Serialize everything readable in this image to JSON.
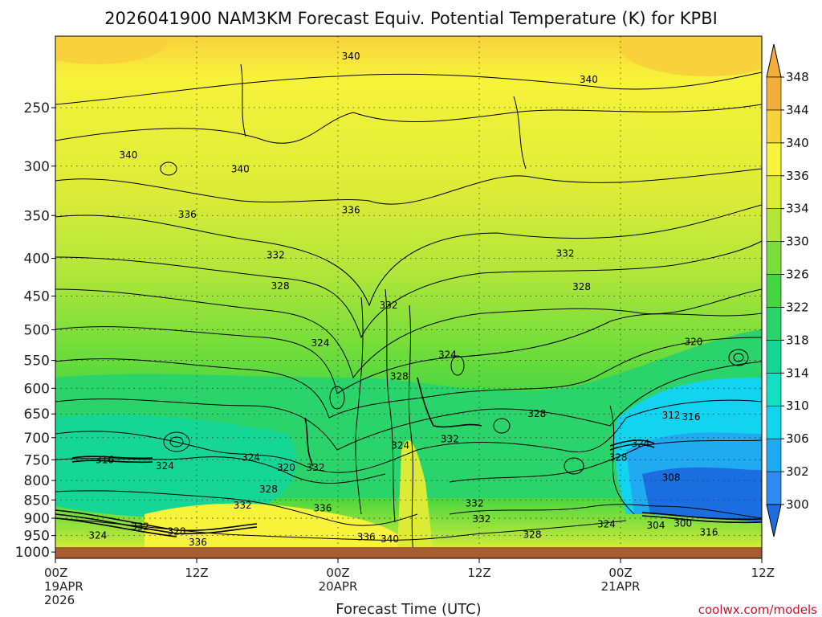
{
  "chart_data": {
    "type": "heatmap",
    "title": "2026041900 NAM3KM Forecast Equiv. Potential Temperature (K) for KPBI",
    "xlabel": "Forecast Time (UTC)",
    "ylabel": "",
    "x_ticks": [
      {
        "hours": 0,
        "line1": "00Z",
        "line2": "19APR",
        "line3": "2026"
      },
      {
        "hours": 12,
        "line1": "12Z",
        "line2": "",
        "line3": ""
      },
      {
        "hours": 24,
        "line1": "00Z",
        "line2": "20APR",
        "line3": ""
      },
      {
        "hours": 36,
        "line1": "12Z",
        "line2": "",
        "line3": ""
      },
      {
        "hours": 48,
        "line1": "00Z",
        "line2": "21APR",
        "line3": ""
      },
      {
        "hours": 60,
        "line1": "12Z",
        "line2": "",
        "line3": ""
      }
    ],
    "xlim": [
      0,
      60
    ],
    "y_ticks": [
      250,
      300,
      350,
      400,
      450,
      500,
      550,
      600,
      650,
      700,
      750,
      800,
      850,
      900,
      950,
      1000
    ],
    "ylim": [
      1020,
      200
    ],
    "y_scale": "log",
    "grid": true,
    "colorbar": {
      "labels": [
        300,
        302,
        306,
        310,
        314,
        318,
        322,
        326,
        330,
        334,
        336,
        340,
        344,
        348
      ],
      "colors": [
        "#1a6ee0",
        "#2f8bf0",
        "#1faaf2",
        "#12d4ee",
        "#12e0c4",
        "#16d696",
        "#2ad46a",
        "#44d640",
        "#7ade3a",
        "#b2e63a",
        "#dcec36",
        "#f7f23a",
        "#f8d23a",
        "#f3ae3a"
      ],
      "extend": "both"
    },
    "contour_labels": [
      {
        "text": "340",
        "hours": 6.2,
        "p": 290
      },
      {
        "text": "340",
        "hours": 15.7,
        "p": 303
      },
      {
        "text": "340",
        "hours": 25.1,
        "p": 213
      },
      {
        "text": "340",
        "hours": 45.3,
        "p": 229
      },
      {
        "text": "340",
        "hours": 28.4,
        "p": 960
      },
      {
        "text": "336",
        "hours": 11.2,
        "p": 349
      },
      {
        "text": "336",
        "hours": 25.1,
        "p": 344
      },
      {
        "text": "336",
        "hours": 12.1,
        "p": 970
      },
      {
        "text": "336",
        "hours": 22.7,
        "p": 872
      },
      {
        "text": "336",
        "hours": 26.4,
        "p": 955
      },
      {
        "text": "332",
        "hours": 18.7,
        "p": 396
      },
      {
        "text": "332",
        "hours": 28.3,
        "p": 463
      },
      {
        "text": "332",
        "hours": 43.3,
        "p": 394
      },
      {
        "text": "332",
        "hours": 7.2,
        "p": 924
      },
      {
        "text": "332",
        "hours": 15.9,
        "p": 865
      },
      {
        "text": "332",
        "hours": 22.1,
        "p": 768
      },
      {
        "text": "332",
        "hours": 33.5,
        "p": 703
      },
      {
        "text": "332",
        "hours": 35.6,
        "p": 859
      },
      {
        "text": "332",
        "hours": 36.2,
        "p": 902
      },
      {
        "text": "328",
        "hours": 19.1,
        "p": 436
      },
      {
        "text": "328",
        "hours": 29.2,
        "p": 578
      },
      {
        "text": "328",
        "hours": 44.7,
        "p": 437
      },
      {
        "text": "328",
        "hours": 40.9,
        "p": 650
      },
      {
        "text": "328",
        "hours": 10.3,
        "p": 938
      },
      {
        "text": "328",
        "hours": 18.1,
        "p": 822
      },
      {
        "text": "328",
        "hours": 40.5,
        "p": 947
      },
      {
        "text": "328",
        "hours": 47.8,
        "p": 745
      },
      {
        "text": "324",
        "hours": 22.5,
        "p": 521
      },
      {
        "text": "324",
        "hours": 33.3,
        "p": 540
      },
      {
        "text": "324",
        "hours": 3.6,
        "p": 950
      },
      {
        "text": "324",
        "hours": 9.3,
        "p": 765
      },
      {
        "text": "324",
        "hours": 16.6,
        "p": 745
      },
      {
        "text": "324",
        "hours": 29.3,
        "p": 717
      },
      {
        "text": "324",
        "hours": 46.8,
        "p": 917
      },
      {
        "text": "324",
        "hours": 49.7,
        "p": 713
      },
      {
        "text": "320",
        "hours": 54.2,
        "p": 519
      },
      {
        "text": "320",
        "hours": 19.6,
        "p": 768
      },
      {
        "text": "316",
        "hours": 4.2,
        "p": 750
      },
      {
        "text": "316",
        "hours": 54.0,
        "p": 656
      },
      {
        "text": "316",
        "hours": 55.5,
        "p": 940
      },
      {
        "text": "312",
        "hours": 52.3,
        "p": 653
      },
      {
        "text": "308",
        "hours": 52.3,
        "p": 793
      },
      {
        "text": "304",
        "hours": 51.0,
        "p": 920
      },
      {
        "text": "300",
        "hours": 53.3,
        "p": 915
      }
    ]
  },
  "credit": "coolwx.com/models"
}
